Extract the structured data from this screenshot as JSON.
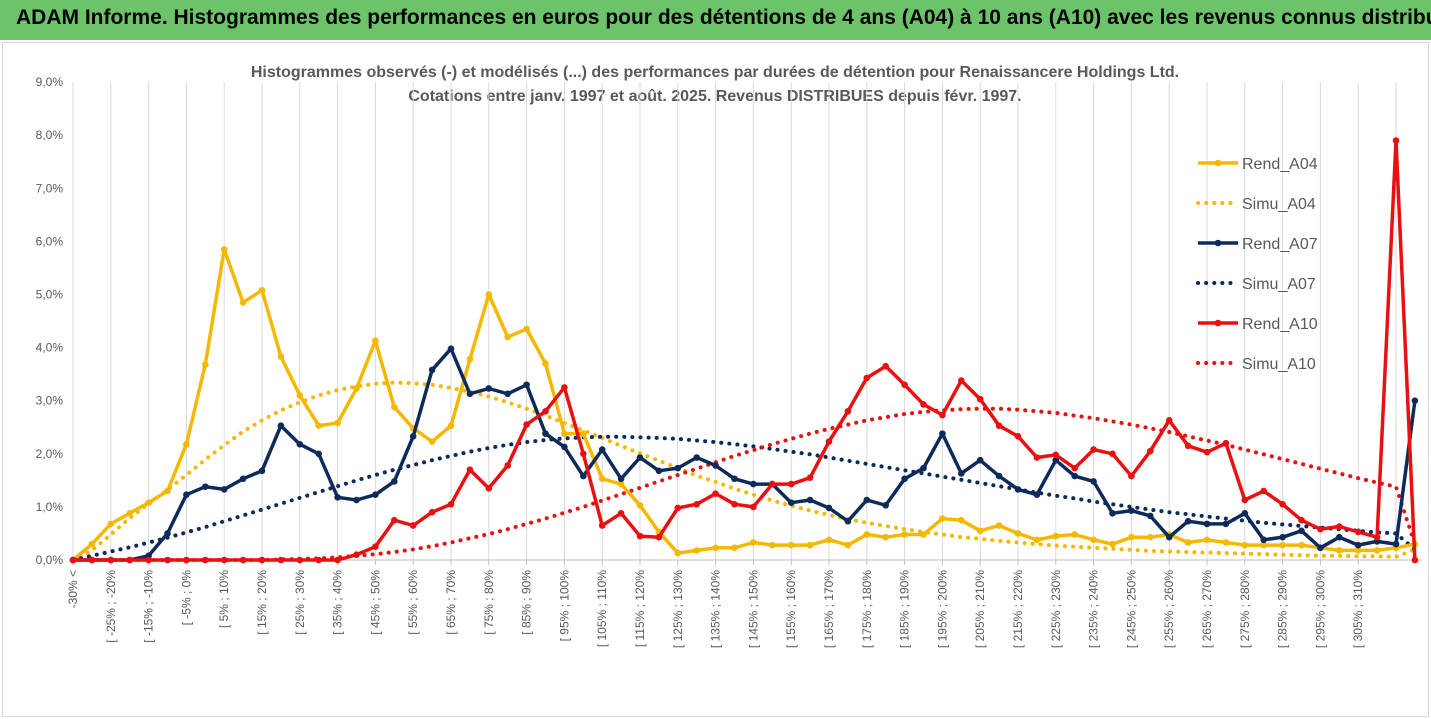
{
  "banner": {
    "title": "ADAM Informe. Histogrammes des performances en euros pour des détentions de 4 ans (A04) à 10 ans (A10) avec les revenus connus distribués"
  },
  "chart_data": {
    "type": "line",
    "title_line1": "Histogrammes observés (-) et modélisés (...) des performances par durées de détention pour Renaissancere Holdings Ltd.",
    "title_line2": "Cotations entre janv. 1997 et août. 2025. Revenus DISTRIBUES depuis févr. 1997.",
    "ylim": [
      0,
      9
    ],
    "y_unit": "%",
    "yticks": [
      "0,0%",
      "1,0%",
      "2,0%",
      "3,0%",
      "4,0%",
      "5,0%",
      "6,0%",
      "7,0%",
      "8,0%",
      "9,0%"
    ],
    "grid": "vertical",
    "legend_position": "right",
    "xticks": [
      "-30% <",
      "[ -25% ; -20%",
      "[ -15% ; -10%",
      "[ -5% ; 0%",
      "[ 5% ; 10%",
      "[ 15% ; 20%",
      "[ 25% ; 30%",
      "[ 35% ; 40%",
      "[ 45% ; 50%",
      "[ 55% ; 60%",
      "[ 65% ; 70%",
      "[ 75% ; 80%",
      "[ 85% ; 90%",
      "[ 95% ; 100%",
      "[ 105% ; 110%",
      "[ 115% ; 120%",
      "[ 125% ; 130%",
      "[ 135% ; 140%",
      "[ 145% ; 150%",
      "[ 155% ; 160%",
      "[ 165% ; 170%",
      "[ 175% ; 180%",
      "[ 185% ; 190%",
      "[ 195% ; 200%",
      "[ 205% ; 210%",
      "[ 215% ; 220%",
      "[ 225% ; 230%",
      "[ 235% ; 240%",
      "[ 245% ; 250%",
      "[ 255% ; 260%",
      "[ 265% ; 270%",
      "[ 275% ; 280%",
      "[ 285% ; 290%",
      "[ 295% ; 300%",
      "[ 305% ; 310%"
    ],
    "series": [
      {
        "name": "Rend_A04",
        "color": "#f5b800",
        "style": "solid",
        "values": [
          0.0,
          0.3,
          0.68,
          0.88,
          1.08,
          1.3,
          2.18,
          3.68,
          5.85,
          4.85,
          5.08,
          3.83,
          3.1,
          2.53,
          2.58,
          3.23,
          4.13,
          2.88,
          2.48,
          2.23,
          2.53,
          3.78,
          5.0,
          4.2,
          4.35,
          3.7,
          2.38,
          2.38,
          1.53,
          1.43,
          1.03,
          0.53,
          0.13,
          0.18,
          0.23,
          0.23,
          0.33,
          0.28,
          0.28,
          0.28,
          0.38,
          0.28,
          0.48,
          0.43,
          0.48,
          0.48,
          0.78,
          0.75,
          0.55,
          0.65,
          0.5,
          0.38,
          0.45,
          0.48,
          0.38,
          0.3,
          0.43,
          0.43,
          0.48,
          0.33,
          0.38,
          0.33,
          0.28,
          0.28,
          0.28,
          0.28,
          0.23,
          0.18,
          0.18,
          0.18,
          0.23,
          0.3
        ]
      },
      {
        "name": "Simu_A04",
        "color": "#f5b800",
        "style": "dotted",
        "values": [
          0.0,
          0.18,
          0.48,
          0.79,
          1.06,
          1.32,
          1.6,
          1.89,
          2.16,
          2.42,
          2.63,
          2.82,
          2.97,
          3.1,
          3.2,
          3.27,
          3.32,
          3.34,
          3.33,
          3.3,
          3.24,
          3.17,
          3.08,
          2.97,
          2.85,
          2.72,
          2.58,
          2.44,
          2.3,
          2.15,
          2.01,
          1.87,
          1.73,
          1.59,
          1.47,
          1.34,
          1.23,
          1.12,
          1.02,
          0.93,
          0.85,
          0.77,
          0.7,
          0.64,
          0.58,
          0.53,
          0.48,
          0.43,
          0.4,
          0.36,
          0.33,
          0.3,
          0.27,
          0.25,
          0.23,
          0.21,
          0.19,
          0.17,
          0.16,
          0.15,
          0.14,
          0.13,
          0.12,
          0.11,
          0.1,
          0.09,
          0.08,
          0.08,
          0.07,
          0.07,
          0.06,
          0.2
        ]
      },
      {
        "name": "Rend_A07",
        "color": "#0d2a5a",
        "style": "solid",
        "values": [
          0.0,
          0.0,
          0.0,
          0.0,
          0.08,
          0.5,
          1.23,
          1.38,
          1.33,
          1.53,
          1.68,
          2.53,
          2.18,
          2.0,
          1.18,
          1.13,
          1.23,
          1.48,
          2.33,
          3.58,
          3.98,
          3.13,
          3.23,
          3.13,
          3.3,
          2.38,
          2.13,
          1.58,
          2.08,
          1.53,
          1.93,
          1.68,
          1.73,
          1.93,
          1.78,
          1.53,
          1.43,
          1.43,
          1.08,
          1.13,
          0.98,
          0.73,
          1.13,
          1.03,
          1.53,
          1.73,
          2.38,
          1.63,
          1.88,
          1.58,
          1.33,
          1.23,
          1.88,
          1.58,
          1.48,
          0.88,
          0.93,
          0.83,
          0.43,
          0.73,
          0.68,
          0.68,
          0.88,
          0.38,
          0.43,
          0.55,
          0.23,
          0.43,
          0.28,
          0.35,
          0.3,
          3.0
        ]
      },
      {
        "name": "Simu_A07",
        "color": "#0d2a5a",
        "style": "dotted",
        "values": [
          0.0,
          0.08,
          0.16,
          0.24,
          0.33,
          0.42,
          0.52,
          0.62,
          0.73,
          0.84,
          0.95,
          1.06,
          1.17,
          1.28,
          1.39,
          1.5,
          1.6,
          1.7,
          1.79,
          1.88,
          1.96,
          2.04,
          2.11,
          2.17,
          2.22,
          2.26,
          2.29,
          2.31,
          2.32,
          2.32,
          2.31,
          2.3,
          2.28,
          2.25,
          2.22,
          2.18,
          2.14,
          2.09,
          2.04,
          1.99,
          1.93,
          1.87,
          1.81,
          1.75,
          1.69,
          1.63,
          1.57,
          1.51,
          1.45,
          1.39,
          1.33,
          1.27,
          1.21,
          1.16,
          1.1,
          1.05,
          1.0,
          0.95,
          0.9,
          0.86,
          0.82,
          0.78,
          0.74,
          0.7,
          0.67,
          0.64,
          0.61,
          0.58,
          0.55,
          0.52,
          0.5,
          0.2
        ]
      },
      {
        "name": "Rend_A10",
        "color": "#e81010",
        "style": "solid",
        "values": [
          0.0,
          0.0,
          0.0,
          0.0,
          0.0,
          0.0,
          0.0,
          0.0,
          0.0,
          0.0,
          0.0,
          0.0,
          0.0,
          0.0,
          0.0,
          0.1,
          0.25,
          0.75,
          0.65,
          0.9,
          1.05,
          1.7,
          1.35,
          1.78,
          2.55,
          2.8,
          3.25,
          2.0,
          0.65,
          0.88,
          0.45,
          0.43,
          0.98,
          1.05,
          1.25,
          1.05,
          1.0,
          1.43,
          1.43,
          1.55,
          2.23,
          2.8,
          3.43,
          3.65,
          3.3,
          2.93,
          2.73,
          3.38,
          3.03,
          2.53,
          2.33,
          1.93,
          1.98,
          1.73,
          2.08,
          2.0,
          1.58,
          2.05,
          2.63,
          2.15,
          2.03,
          2.2,
          1.13,
          1.3,
          1.05,
          0.75,
          0.58,
          0.63,
          0.53,
          0.43,
          7.9,
          0.0
        ]
      },
      {
        "name": "Simu_A10",
        "color": "#e81010",
        "style": "dotted",
        "values": [
          0.0,
          0.0,
          0.0,
          0.0,
          0.0,
          0.0,
          0.0,
          0.0,
          0.0,
          0.0,
          0.0,
          0.01,
          0.02,
          0.03,
          0.05,
          0.08,
          0.11,
          0.15,
          0.2,
          0.26,
          0.33,
          0.41,
          0.49,
          0.58,
          0.68,
          0.78,
          0.89,
          1.0,
          1.12,
          1.24,
          1.36,
          1.48,
          1.6,
          1.72,
          1.84,
          1.96,
          2.07,
          2.18,
          2.28,
          2.38,
          2.47,
          2.55,
          2.63,
          2.69,
          2.75,
          2.79,
          2.82,
          2.84,
          2.85,
          2.85,
          2.83,
          2.8,
          2.77,
          2.72,
          2.67,
          2.61,
          2.55,
          2.48,
          2.41,
          2.33,
          2.25,
          2.17,
          2.08,
          1.99,
          1.9,
          1.81,
          1.72,
          1.63,
          1.54,
          1.46,
          1.38,
          0.3
        ]
      }
    ]
  }
}
